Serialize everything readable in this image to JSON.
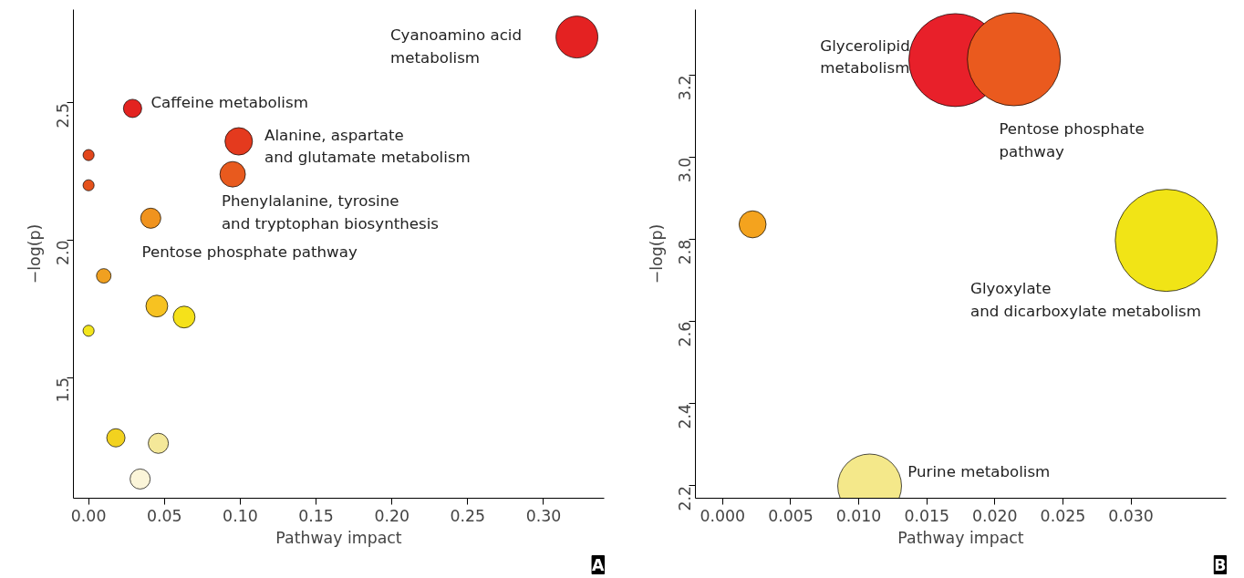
{
  "chart_data": [
    {
      "type": "bubble",
      "xlabel": "Pathway impact",
      "ylabel": "−log(p)",
      "x": [
        0.322,
        0.029,
        0.099,
        0.0,
        0.0,
        0.095,
        0.041,
        0.01,
        0.045,
        0.063,
        0.0,
        0.018,
        0.046,
        0.034
      ],
      "values": [
        2.74,
        2.48,
        2.36,
        2.31,
        2.2,
        2.24,
        2.08,
        1.87,
        1.76,
        1.72,
        1.67,
        1.28,
        1.26,
        1.13
      ],
      "sizes": [
        1.0,
        0.19,
        0.43,
        0.07,
        0.07,
        0.37,
        0.23,
        0.12,
        0.27,
        0.27,
        0.07,
        0.19,
        0.23,
        0.23
      ],
      "colors": [
        "#e42222",
        "#e32320",
        "#e43a1e",
        "#e2461c",
        "#e5521c",
        "#e85a1e",
        "#f0931e",
        "#f0a020",
        "#f7c221",
        "#f5e11a",
        "#f3e51c",
        "#f2d21f",
        "#f4e899",
        "#fbf5d9"
      ],
      "xlim": [
        -0.01,
        0.34
      ],
      "xticks": [
        {
          "value": 0,
          "label": "0.00"
        },
        0.05,
        {
          "value": 0.1,
          "label": "0.10"
        },
        0.15,
        {
          "value": 0.2,
          "label": "0.20"
        },
        0.25,
        {
          "value": 0.3,
          "label": "0.30"
        }
      ],
      "ylim": [
        1.06,
        2.84
      ],
      "yticks": [
        1.5,
        {
          "value": 2,
          "label": "2.0"
        },
        2.5
      ],
      "annotations": [
        "Cyanoamino acid\nmetabolism",
        "Caffeine metabolism",
        "Alanine, aspartate\nand glutamate metabolism",
        "Phenylalanine, tyrosine\nand tryptophan biosynthesis",
        "Pentose phosphate pathway",
        "A"
      ]
    },
    {
      "type": "bubble",
      "xlabel": "Pathway impact",
      "ylabel": "−log(p)",
      "x": [
        0.0171,
        0.0214,
        0.0022,
        0.0326,
        0.0108
      ],
      "values": [
        3.237,
        3.239,
        2.837,
        2.798,
        2.2
      ],
      "sizes": [
        0.83,
        0.83,
        0.07,
        1.0,
        0.39
      ],
      "colors": [
        "#e8202a",
        "#ea5a1e",
        "#f4a31e",
        "#f1e416",
        "#f4e88a"
      ],
      "xlim": [
        -0.002,
        0.037
      ],
      "xticks": [
        {
          "value": 0,
          "label": "0.000"
        },
        0.005,
        {
          "value": 0.01,
          "label": "0.010"
        },
        0.015,
        {
          "value": 0.02,
          "label": "0.020"
        },
        0.025,
        {
          "value": 0.03,
          "label": "0.030"
        }
      ],
      "ylim": [
        2.17,
        3.36
      ],
      "yticks": [
        2.2,
        2.4,
        2.6,
        2.8,
        {
          "value": 3,
          "label": "3.0"
        },
        3.2
      ],
      "annotations": [
        "Glycerolipid\nmetabolism",
        "Pentose phosphate\npathway",
        "Glyoxylate\nand dicarboxylate metabolism",
        "Purine metabolism",
        "B"
      ]
    }
  ]
}
